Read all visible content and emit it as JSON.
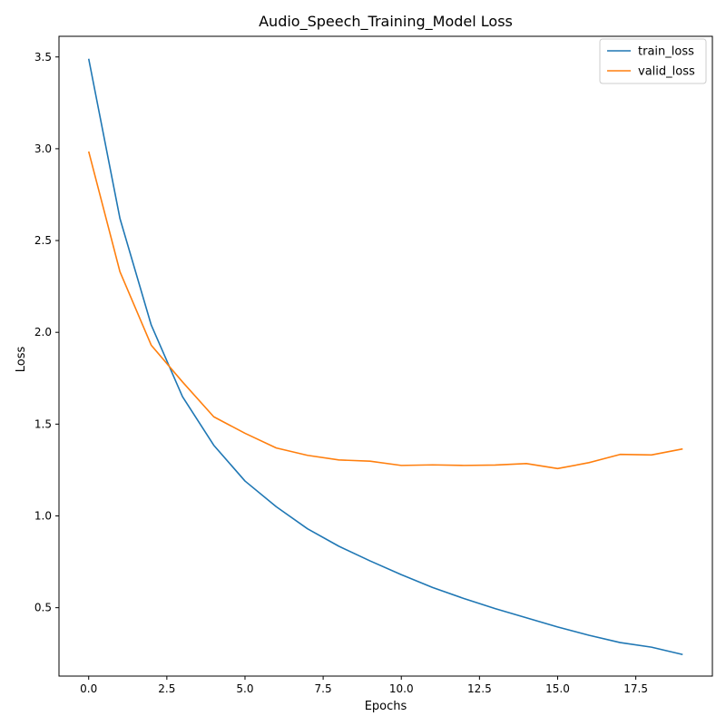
{
  "chart_data": {
    "type": "line",
    "title": "Audio_Speech_Training_Model Loss",
    "xlabel": "Epochs",
    "ylabel": "Loss",
    "x": [
      0,
      1,
      2,
      3,
      4,
      5,
      6,
      7,
      8,
      9,
      10,
      11,
      12,
      13,
      14,
      15,
      16,
      17,
      18,
      19
    ],
    "series": [
      {
        "name": "train_loss",
        "color": "#1f77b4",
        "values": [
          3.49,
          2.62,
          2.04,
          1.65,
          1.385,
          1.19,
          1.05,
          0.93,
          0.835,
          0.755,
          0.68,
          0.61,
          0.55,
          0.495,
          0.445,
          0.395,
          0.35,
          0.31,
          0.285,
          0.245
        ]
      },
      {
        "name": "valid_loss",
        "color": "#ff7f0e",
        "values": [
          2.985,
          2.33,
          1.93,
          1.73,
          1.54,
          1.45,
          1.37,
          1.33,
          1.305,
          1.298,
          1.275,
          1.278,
          1.275,
          1.277,
          1.285,
          1.258,
          1.29,
          1.335,
          1.332,
          1.365
        ]
      }
    ],
    "xlim": [
      -0.95,
      19.95
    ],
    "ylim": [
      0.1275,
      3.6125
    ],
    "xticks": [
      "0.0",
      "2.5",
      "5.0",
      "7.5",
      "10.0",
      "12.5",
      "15.0",
      "17.5"
    ],
    "xtick_values": [
      0,
      2.5,
      5,
      7.5,
      10,
      12.5,
      15,
      17.5
    ],
    "yticks": [
      "0.5",
      "1.0",
      "1.5",
      "2.0",
      "2.5",
      "3.0",
      "3.5"
    ],
    "ytick_values": [
      0.5,
      1.0,
      1.5,
      2.0,
      2.5,
      3.0,
      3.5
    ],
    "grid": false,
    "legend_position": "top-right"
  }
}
